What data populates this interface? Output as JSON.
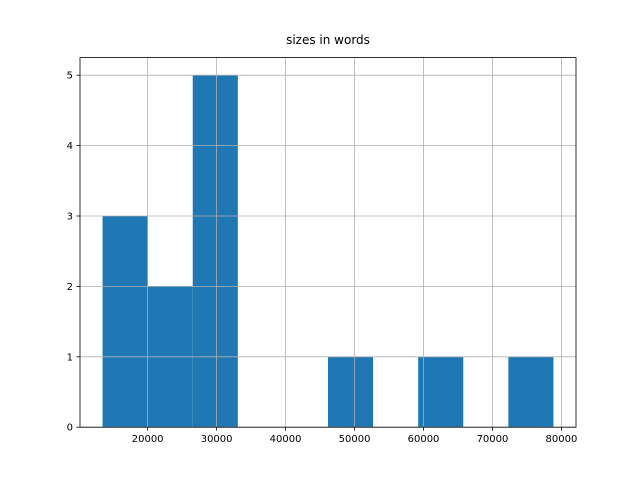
{
  "chart_data": {
    "type": "histogram",
    "title": "sizes in words",
    "bins": [
      13460,
      19998,
      26536,
      33074,
      39611,
      46149,
      52687,
      59225,
      65763,
      72300,
      78838
    ],
    "values": [
      3,
      2,
      5,
      0,
      0,
      1,
      0,
      1,
      0,
      1
    ],
    "color": "#1f77b4",
    "xlim": [
      10190,
      82110
    ],
    "xticks": [
      20000,
      30000,
      40000,
      50000,
      60000,
      70000,
      80000
    ],
    "ylim": [
      0,
      5.25
    ],
    "yticks": [
      0,
      1,
      2,
      3,
      4,
      5
    ],
    "grid": true
  }
}
